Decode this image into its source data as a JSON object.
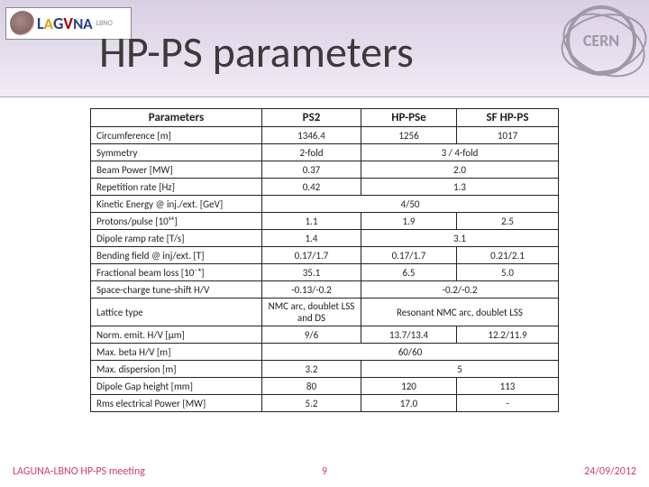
{
  "logo": {
    "text_parts": [
      "L",
      "A",
      "G",
      "V",
      "N",
      "A"
    ],
    "sub": "LBNO"
  },
  "cern": "CERN",
  "title": "HP-PS parameters",
  "table": {
    "headers": [
      "Parameters",
      "PS2",
      "HP-PSe",
      "SF HP-PS"
    ],
    "rows": [
      {
        "param": "Circumference [m]",
        "cells": [
          "1346.4",
          "1256",
          "1017"
        ]
      },
      {
        "param": "Symmetry",
        "cells": [
          "2-fold",
          {
            "span": 2,
            "text": "3 / 4-fold"
          }
        ]
      },
      {
        "param": "Beam Power [MW]",
        "cells": [
          "0.37",
          {
            "span": 2,
            "text": "2.0"
          }
        ]
      },
      {
        "param": "Repetition rate [Hz]",
        "cells": [
          "0.42",
          {
            "span": 2,
            "text": "1.3"
          }
        ]
      },
      {
        "param": "Kinetic Energy @ inj./ext. [GeV]",
        "cells": [
          {
            "span": 3,
            "text": "4/50"
          }
        ]
      },
      {
        "param": "Protons/pulse [10¹⁴]",
        "cells": [
          "1.1",
          "1.9",
          "2.5"
        ]
      },
      {
        "param": "Dipole ramp rate [T/s]",
        "cells": [
          "1.4",
          {
            "span": 2,
            "text": "3.1"
          }
        ]
      },
      {
        "param": "Bending field @ inj/ext. [T]",
        "cells": [
          "0.17/1.7",
          "0.17/1.7",
          "0.21/2.1"
        ]
      },
      {
        "param": "Fractional beam loss [10⁻⁴]",
        "cells": [
          "35.1",
          "6.5",
          "5.0"
        ]
      },
      {
        "param": "Space-charge tune-shift H/V",
        "cells": [
          "-0.13/-0.2",
          {
            "span": 2,
            "text": "-0.2/-0.2"
          }
        ]
      },
      {
        "param": "Lattice type",
        "cells": [
          "NMC arc, doublet LSS and DS",
          {
            "span": 2,
            "text": "Resonant NMC arc, doublet LSS"
          }
        ]
      },
      {
        "param": "Norm. emit. H/V [μm]",
        "cells": [
          "9/6",
          "13.7/13.4",
          "12.2/11.9"
        ]
      },
      {
        "param": "Max. beta H/V [m]",
        "cells": [
          {
            "span": 3,
            "text": "60/60"
          }
        ]
      },
      {
        "param": "Max. dispersion [m]",
        "cells": [
          "3.2",
          {
            "span": 2,
            "text": "5"
          }
        ]
      },
      {
        "param": "Dipole Gap height [mm]",
        "cells": [
          "80",
          "120",
          "113"
        ]
      },
      {
        "param": "Rms electrical Power [MW]",
        "cells": [
          "5.2",
          "17.0",
          "-"
        ]
      }
    ]
  },
  "footer": {
    "left": "LAGUNA-LBNO HP-PS meeting",
    "num": "9",
    "right": "24/09/2012"
  }
}
